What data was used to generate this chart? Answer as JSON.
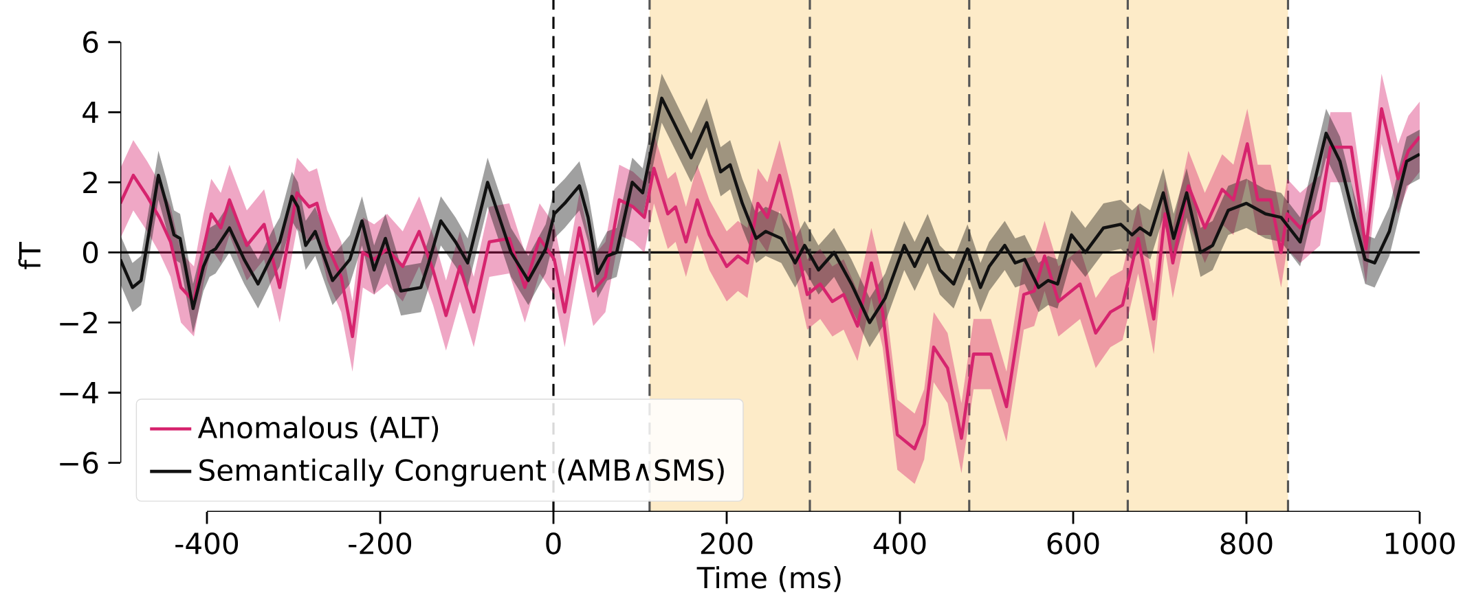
{
  "chart_data": {
    "type": "line",
    "xlabel": "Time (ms)",
    "ylabel": "fT",
    "xlim": [
      -500,
      1000
    ],
    "ylim": [
      -7.4,
      7.2
    ],
    "xticks": [
      -400,
      -200,
      0,
      200,
      400,
      600,
      800,
      1000
    ],
    "yticks": [
      {
        "value": -6,
        "label": "−6"
      },
      {
        "value": -4,
        "label": "−4"
      },
      {
        "value": -2,
        "label": "−2"
      },
      {
        "value": 0,
        "label": "0"
      },
      {
        "value": 2,
        "label": "2"
      },
      {
        "value": 4,
        "label": "4"
      },
      {
        "value": 6,
        "label": "6"
      }
    ],
    "legend": "bottom left",
    "series": [
      {
        "name": "Anomalous (ALT)",
        "color": "#d6246e",
        "x": [
          -500,
          -485,
          -469,
          -455,
          -442,
          -430,
          -415,
          -404,
          -395,
          -384,
          -374,
          -354,
          -334,
          -316,
          -296,
          -282,
          -273,
          -261,
          -245,
          -232,
          -220,
          -207,
          -192,
          -174,
          -155,
          -139,
          -124,
          -108,
          -92,
          -74,
          -51,
          -33,
          -16,
          1,
          13,
          30,
          46,
          60,
          76,
          92,
          105,
          116,
          132,
          141,
          153,
          166,
          180,
          200,
          213,
          224,
          236,
          247,
          261,
          275,
          293,
          308,
          322,
          335,
          351,
          367,
          380,
          397,
          417,
          428,
          439,
          455,
          471,
          485,
          505,
          523,
          543,
          555,
          567,
          583,
          608,
          626,
          643,
          657,
          675,
          693,
          706,
          715,
          733,
          752,
          772,
          785,
          801,
          813,
          828,
          840,
          847,
          862,
          885,
          897,
          921,
          938,
          956,
          975,
          987,
          1000
        ],
        "values": [
          1.4,
          2.2,
          1.6,
          1.0,
          0.3,
          -1.0,
          -1.4,
          0.1,
          1.1,
          0.7,
          1.5,
          0.2,
          0.8,
          -1.0,
          1.7,
          1.3,
          1.4,
          0.2,
          -0.7,
          -2.4,
          0.0,
          -0.2,
          0.1,
          -0.4,
          0.6,
          -0.5,
          -1.8,
          -0.4,
          -1.7,
          0.3,
          0.4,
          -1.0,
          0.4,
          -0.2,
          -1.7,
          0.7,
          -1.1,
          -0.7,
          1.5,
          1.3,
          1.0,
          2.4,
          1.1,
          1.3,
          0.3,
          1.5,
          0.5,
          -0.4,
          -0.1,
          -0.3,
          1.4,
          1.0,
          2.2,
          0.8,
          -1.2,
          -0.9,
          -1.4,
          -1.2,
          -2.1,
          -0.3,
          -1.7,
          -5.2,
          -5.6,
          -4.9,
          -2.7,
          -3.3,
          -5.3,
          -2.9,
          -2.9,
          -4.4,
          -1.2,
          -1.1,
          -0.1,
          -1.4,
          -0.9,
          -2.3,
          -1.7,
          -1.5,
          0.4,
          -1.9,
          1.1,
          -0.3,
          1.9,
          0.7,
          1.8,
          1.5,
          3.1,
          1.5,
          1.5,
          0.0,
          1.1,
          0.7,
          1.2,
          3.0,
          3.0,
          0.1,
          4.1,
          2.1,
          2.9,
          3.3
        ],
        "lower": [
          0.4,
          1.2,
          0.6,
          0.0,
          -0.7,
          -2.0,
          -2.4,
          -0.9,
          0.1,
          -0.3,
          0.5,
          -0.8,
          -0.2,
          -2.0,
          0.7,
          0.3,
          0.4,
          -0.8,
          -1.7,
          -3.4,
          -1.0,
          -1.2,
          -0.9,
          -1.4,
          -0.4,
          -1.5,
          -2.8,
          -1.4,
          -2.7,
          -0.7,
          -0.6,
          -2.0,
          -0.6,
          -1.2,
          -2.7,
          -0.3,
          -2.1,
          -1.7,
          0.5,
          0.3,
          0.0,
          1.4,
          0.1,
          0.3,
          -0.7,
          0.5,
          -0.5,
          -1.4,
          -1.1,
          -1.3,
          0.4,
          0.0,
          1.2,
          -0.2,
          -2.2,
          -1.9,
          -2.4,
          -2.2,
          -3.1,
          -1.3,
          -2.7,
          -6.2,
          -6.6,
          -5.9,
          -3.7,
          -4.3,
          -6.3,
          -3.9,
          -3.9,
          -5.4,
          -2.2,
          -2.1,
          -1.1,
          -2.4,
          -1.9,
          -3.3,
          -2.7,
          -2.5,
          -0.6,
          -2.9,
          0.1,
          -1.3,
          0.9,
          -0.3,
          0.8,
          0.5,
          2.1,
          0.5,
          0.5,
          -1.0,
          0.1,
          -0.3,
          0.2,
          2.0,
          2.0,
          -0.9,
          3.1,
          1.1,
          1.9,
          2.3
        ],
        "upper": [
          2.4,
          3.2,
          2.6,
          2.0,
          1.3,
          0.0,
          -0.4,
          1.1,
          2.1,
          1.7,
          2.5,
          1.2,
          1.8,
          0.0,
          2.7,
          2.3,
          2.4,
          1.2,
          0.3,
          -1.4,
          1.0,
          0.8,
          1.1,
          0.6,
          1.6,
          0.5,
          -0.8,
          0.6,
          -0.7,
          1.3,
          1.4,
          0.0,
          1.4,
          0.8,
          -0.7,
          1.7,
          -0.1,
          0.3,
          2.5,
          2.3,
          2.0,
          3.4,
          2.1,
          2.3,
          1.3,
          2.5,
          1.5,
          0.6,
          0.9,
          0.7,
          2.4,
          2.0,
          3.2,
          1.8,
          -0.2,
          0.1,
          -0.4,
          -0.2,
          -1.1,
          0.7,
          -0.7,
          -4.2,
          -4.6,
          -3.9,
          -1.7,
          -2.3,
          -4.3,
          -1.9,
          -1.9,
          -3.4,
          -0.2,
          -0.1,
          0.9,
          -0.4,
          0.1,
          -1.3,
          -0.7,
          -0.5,
          1.4,
          -0.9,
          2.1,
          0.7,
          2.9,
          1.7,
          2.8,
          2.5,
          4.1,
          2.5,
          2.5,
          1.0,
          2.1,
          1.7,
          2.2,
          4.0,
          4.0,
          1.1,
          5.1,
          3.1,
          3.9,
          4.3
        ]
      },
      {
        "name": "Semantically Congruent (AMB∧SMS)",
        "color": "#111111",
        "x": [
          -500,
          -486,
          -476,
          -456,
          -447,
          -438,
          -431,
          -416,
          -404,
          -397,
          -390,
          -374,
          -357,
          -341,
          -325,
          -316,
          -302,
          -295,
          -286,
          -275,
          -255,
          -235,
          -221,
          -207,
          -194,
          -176,
          -153,
          -144,
          -130,
          -113,
          -99,
          -76,
          -49,
          -29,
          -9,
          1,
          13,
          30,
          40,
          51,
          62,
          73,
          91,
          103,
          125,
          139,
          159,
          177,
          193,
          204,
          218,
          234,
          245,
          263,
          279,
          290,
          306,
          324,
          344,
          365,
          383,
          405,
          417,
          432,
          446,
          462,
          478,
          493,
          503,
          521,
          533,
          544,
          560,
          571,
          582,
          598,
          614,
          635,
          655,
          668,
          677,
          689,
          704,
          716,
          731,
          747,
          761,
          779,
          800,
          822,
          840,
          862,
          892,
          908,
          924,
          937,
          948,
          965,
          985,
          1000
        ],
        "values": [
          -0.2,
          -1.0,
          -0.8,
          2.2,
          1.4,
          0.5,
          0.4,
          -1.6,
          -0.4,
          0.0,
          0.1,
          0.7,
          -0.2,
          -0.9,
          -0.1,
          0.3,
          1.6,
          1.3,
          0.2,
          0.6,
          -0.8,
          -0.2,
          0.9,
          -0.5,
          0.4,
          -1.1,
          -1.0,
          -0.3,
          0.9,
          0.3,
          -0.3,
          2.0,
          0.0,
          -0.8,
          0.1,
          1.1,
          1.4,
          1.9,
          1.0,
          -0.6,
          -0.1,
          0.0,
          2.0,
          1.7,
          4.4,
          3.7,
          2.7,
          3.7,
          2.3,
          2.5,
          1.4,
          0.4,
          0.6,
          0.4,
          -0.3,
          0.2,
          -0.5,
          0.0,
          -0.9,
          -2.0,
          -1.3,
          0.2,
          -0.4,
          0.4,
          -0.5,
          -0.9,
          0.1,
          -1.0,
          -0.4,
          0.2,
          -0.3,
          -0.2,
          -1.0,
          -0.8,
          -0.9,
          0.5,
          0.0,
          0.7,
          0.8,
          0.5,
          0.7,
          0.5,
          1.7,
          0.4,
          1.7,
          0.0,
          0.2,
          1.2,
          1.4,
          1.1,
          1.0,
          0.3,
          3.4,
          2.6,
          1.0,
          -0.2,
          -0.3,
          0.6,
          2.6,
          2.8
        ],
        "lower": [
          -0.9,
          -1.7,
          -1.5,
          1.5,
          0.7,
          -0.2,
          -0.3,
          -2.3,
          -1.1,
          -0.7,
          -0.6,
          0.0,
          -0.9,
          -1.6,
          -0.8,
          -0.4,
          0.9,
          0.6,
          -0.5,
          -0.1,
          -1.5,
          -0.9,
          0.2,
          -1.2,
          -0.3,
          -1.8,
          -1.7,
          -1.0,
          0.2,
          -0.4,
          -1.0,
          1.3,
          -0.7,
          -1.5,
          -0.6,
          0.4,
          0.7,
          1.2,
          0.3,
          -1.3,
          -0.8,
          -0.7,
          1.3,
          1.0,
          3.7,
          3.0,
          2.0,
          3.0,
          1.6,
          1.8,
          0.7,
          -0.3,
          -0.1,
          -0.3,
          -1.0,
          -0.5,
          -1.2,
          -0.7,
          -1.6,
          -2.7,
          -2.0,
          -0.5,
          -1.1,
          -0.3,
          -1.2,
          -1.6,
          -0.6,
          -1.7,
          -1.1,
          -0.5,
          -1.0,
          -0.9,
          -1.7,
          -1.5,
          -1.6,
          -0.2,
          -0.7,
          0.0,
          0.1,
          -0.2,
          0.0,
          -0.2,
          1.0,
          -0.3,
          1.0,
          -0.7,
          -0.5,
          0.5,
          0.7,
          0.4,
          0.3,
          -0.4,
          2.7,
          1.9,
          0.3,
          -0.9,
          -1.0,
          -0.1,
          1.9,
          2.1
        ],
        "upper": [
          0.5,
          -0.3,
          -0.1,
          2.9,
          2.1,
          1.2,
          1.1,
          -0.9,
          0.3,
          0.7,
          0.8,
          1.4,
          0.5,
          -0.2,
          0.6,
          1.0,
          2.3,
          2.0,
          0.9,
          1.3,
          -0.1,
          0.5,
          1.6,
          0.2,
          1.1,
          -0.4,
          -0.3,
          0.4,
          1.6,
          1.0,
          0.4,
          2.7,
          0.7,
          -0.1,
          0.8,
          1.8,
          2.1,
          2.6,
          1.7,
          0.1,
          0.6,
          0.7,
          2.7,
          2.4,
          5.1,
          4.4,
          3.4,
          4.4,
          3.0,
          3.2,
          2.1,
          1.1,
          1.3,
          1.1,
          0.4,
          0.9,
          0.2,
          0.7,
          -0.2,
          -1.3,
          -0.6,
          0.9,
          0.3,
          1.1,
          0.2,
          -0.2,
          0.8,
          -0.3,
          0.3,
          0.9,
          0.4,
          0.5,
          -0.3,
          -0.1,
          -0.2,
          1.2,
          0.7,
          1.4,
          1.5,
          1.2,
          1.4,
          1.2,
          2.4,
          1.1,
          2.4,
          0.7,
          0.9,
          1.9,
          2.1,
          1.8,
          1.7,
          1.0,
          4.1,
          3.3,
          1.7,
          0.5,
          0.4,
          1.3,
          3.3,
          3.5
        ]
      }
    ],
    "ref_lines": [
      {
        "axis": "y",
        "value": 0,
        "color": "#000000",
        "line_style": "solid"
      },
      {
        "axis": "x",
        "value": 0,
        "color": "#000000",
        "line_style": "dashed"
      },
      {
        "axis": "x",
        "value": 111,
        "color": "#555555",
        "line_style": "dashed"
      },
      {
        "axis": "x",
        "value": 296,
        "color": "#555555",
        "line_style": "dashed"
      },
      {
        "axis": "x",
        "value": 480,
        "color": "#555555",
        "line_style": "dashed"
      },
      {
        "axis": "x",
        "value": 663,
        "color": "#555555",
        "line_style": "dashed"
      },
      {
        "axis": "x",
        "value": 848,
        "color": "#555555",
        "line_style": "dashed"
      }
    ],
    "bands": [
      {
        "axis": "x",
        "from": 111,
        "to": 848,
        "color": "#fdebc8"
      }
    ]
  }
}
